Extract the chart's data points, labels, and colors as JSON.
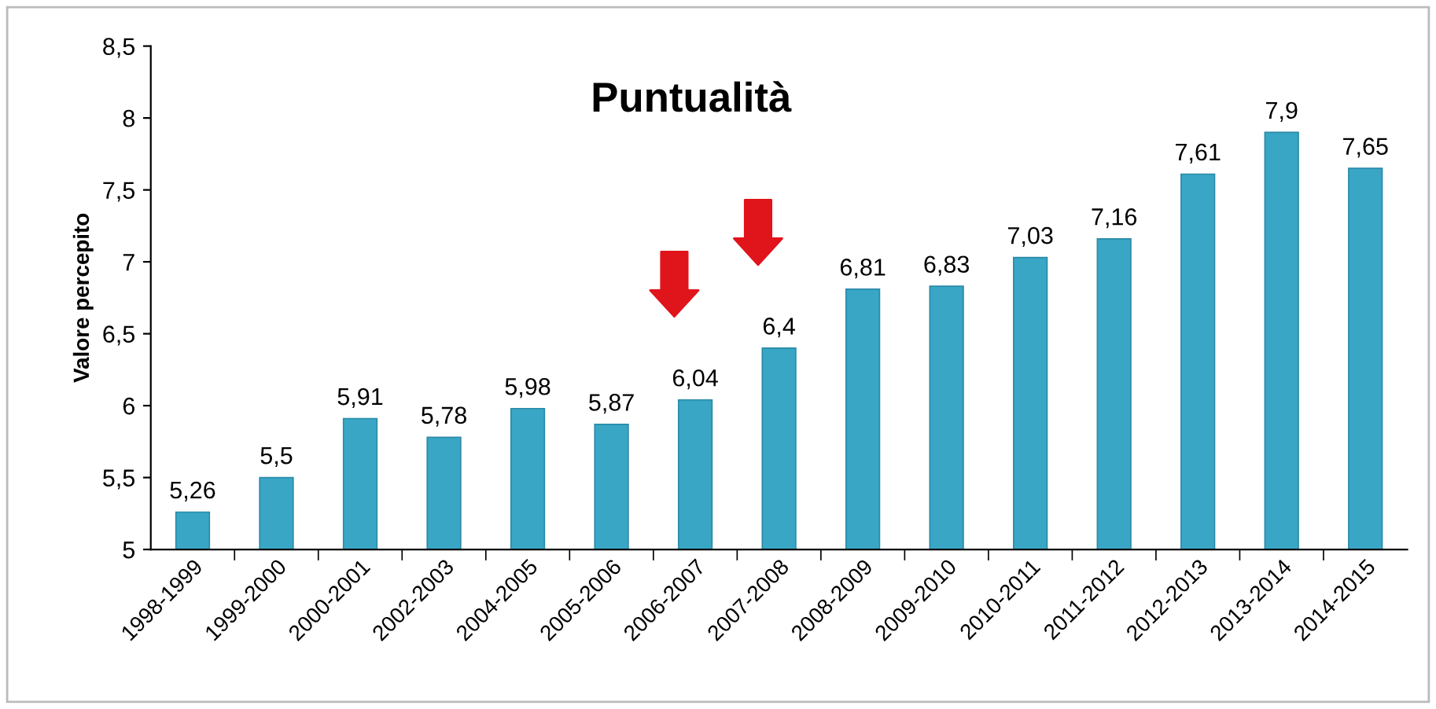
{
  "chart_data": {
    "type": "bar",
    "title": "Puntualità",
    "ylabel": "Valore percepito",
    "categories": [
      "1998-1999",
      "1999-2000",
      "2000-2001",
      "2002-2003",
      "2004-2005",
      "2005-2006",
      "2006-2007",
      "2007-2008",
      "2008-2009",
      "2009-2010",
      "2010-2011",
      "2011-2012",
      "2012-2013",
      "2013-2014",
      "2014-2015"
    ],
    "values": [
      5.26,
      5.5,
      5.91,
      5.78,
      5.98,
      5.87,
      6.04,
      6.4,
      6.81,
      6.83,
      7.03,
      7.16,
      7.61,
      7.9,
      7.65
    ],
    "value_labels": [
      "5,26",
      "5,5",
      "5,91",
      "5,78",
      "5,98",
      "5,87",
      "6,04",
      "6,4",
      "6,81",
      "6,83",
      "7,03",
      "7,16",
      "7,61",
      "7,9",
      "7,65"
    ],
    "color": "#3aa6c6",
    "ylim": [
      5,
      8.5
    ],
    "yticks": [
      5,
      {
        "value": 5.5,
        "label": "5,5"
      },
      6,
      {
        "value": 6.5,
        "label": "6,5"
      },
      7,
      {
        "value": 7.5,
        "label": "7,5"
      },
      8,
      {
        "value": 8.5,
        "label": "8,5"
      }
    ],
    "grid": false,
    "legend": false
  }
}
